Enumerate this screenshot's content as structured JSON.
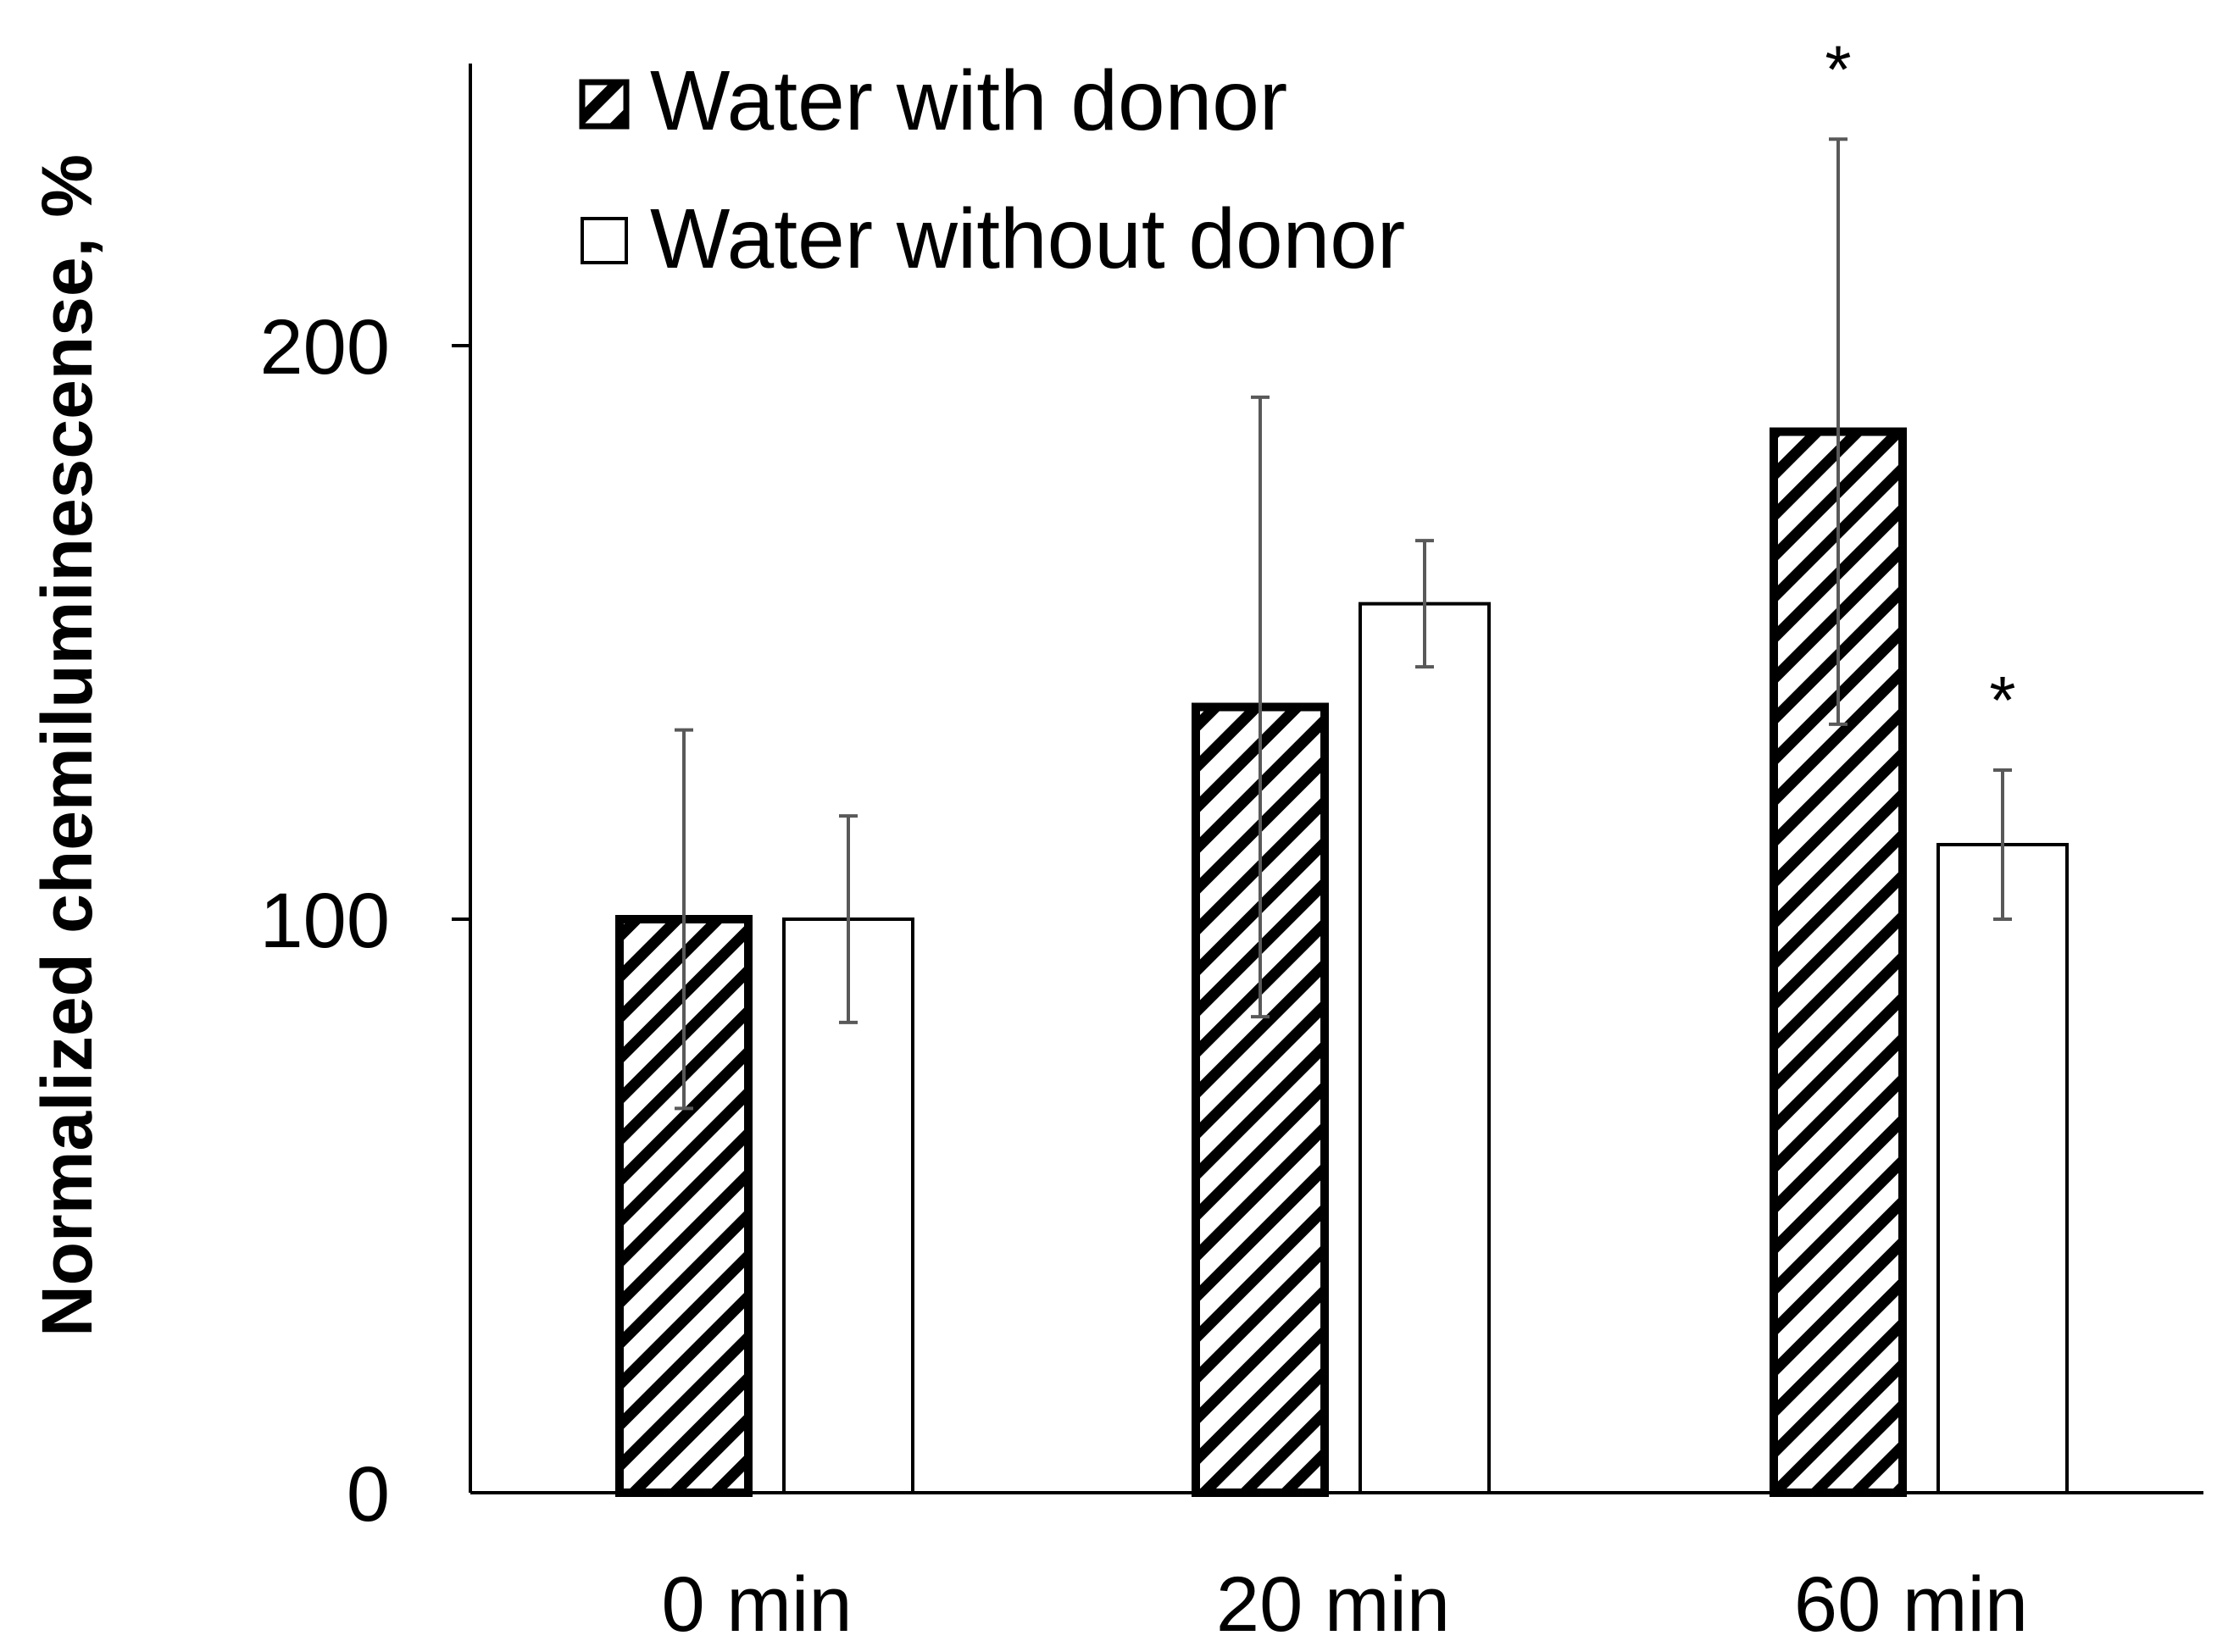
{
  "chart_data": {
    "type": "bar",
    "title": "",
    "xlabel": "",
    "ylabel": "Normalized chemiluminescense, %",
    "ylim": [
      0,
      250
    ],
    "yticks": [
      0,
      100,
      200
    ],
    "ytick_labels": [
      "0",
      "100",
      "200"
    ],
    "categories": [
      "0 min",
      "20 min",
      "60 min"
    ],
    "series": [
      {
        "name": "Water with donor",
        "pattern": "hatched",
        "values": [
          100,
          137,
          185
        ],
        "errors": [
          33,
          54,
          51
        ],
        "significance": [
          "",
          "",
          "*"
        ]
      },
      {
        "name": "Water without donor",
        "pattern": "open",
        "values": [
          100,
          155,
          113
        ],
        "errors": [
          18,
          11,
          13
        ],
        "significance": [
          "",
          "",
          "*"
        ]
      }
    ],
    "legend_position": "top-left",
    "grid": false
  },
  "colors": {
    "bar_stroke": "#000000",
    "bar_fill_open": "#ffffff",
    "hatch": "#000000",
    "error_bar": "#595959",
    "axis": "#000000",
    "text": "#000000"
  }
}
